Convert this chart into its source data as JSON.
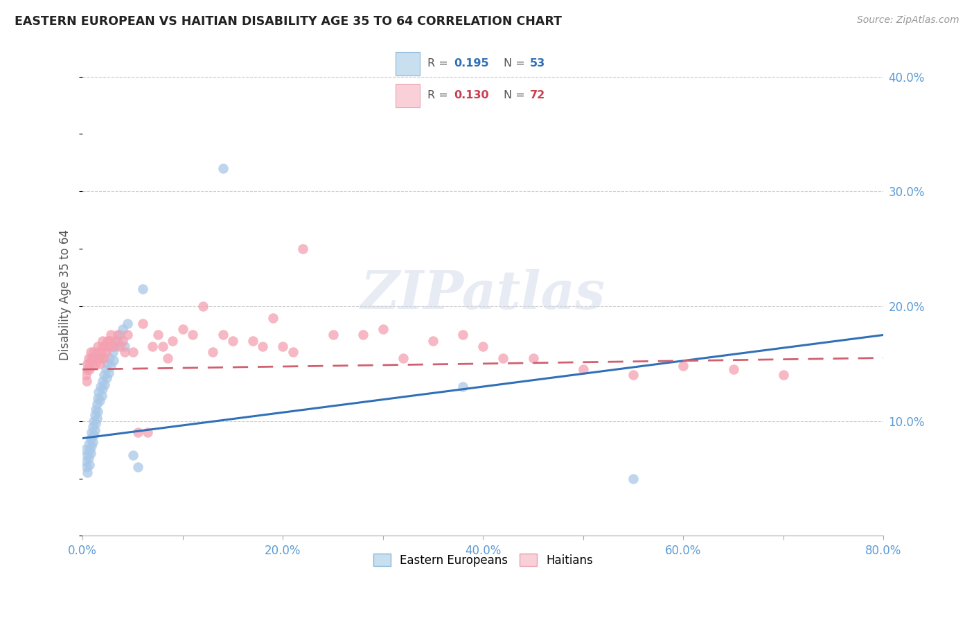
{
  "title": "EASTERN EUROPEAN VS HAITIAN DISABILITY AGE 35 TO 64 CORRELATION CHART",
  "source": "Source: ZipAtlas.com",
  "ylabel": "Disability Age 35 to 64",
  "xlim": [
    0.0,
    0.8
  ],
  "ylim": [
    0.0,
    0.42
  ],
  "xtick_positions": [
    0.0,
    0.1,
    0.2,
    0.3,
    0.4,
    0.5,
    0.6,
    0.7,
    0.8
  ],
  "xticklabels": [
    "0.0%",
    "",
    "20.0%",
    "",
    "40.0%",
    "",
    "60.0%",
    "",
    "80.0%"
  ],
  "ytick_positions": [
    0.1,
    0.2,
    0.3,
    0.4
  ],
  "ytick_labels": [
    "10.0%",
    "20.0%",
    "30.0%",
    "40.0%"
  ],
  "blue_scatter_color": "#a8c8e8",
  "pink_scatter_color": "#f4a0b0",
  "blue_line_color": "#3070b8",
  "pink_line_color": "#d06070",
  "watermark": "ZIPatlas",
  "ee_x": [
    0.002,
    0.003,
    0.004,
    0.005,
    0.005,
    0.006,
    0.006,
    0.007,
    0.007,
    0.008,
    0.008,
    0.009,
    0.009,
    0.01,
    0.01,
    0.011,
    0.011,
    0.012,
    0.012,
    0.013,
    0.013,
    0.014,
    0.014,
    0.015,
    0.015,
    0.016,
    0.017,
    0.018,
    0.019,
    0.02,
    0.02,
    0.021,
    0.022,
    0.023,
    0.024,
    0.025,
    0.026,
    0.027,
    0.028,
    0.03,
    0.031,
    0.033,
    0.035,
    0.037,
    0.04,
    0.042,
    0.045,
    0.05,
    0.055,
    0.06,
    0.14,
    0.38,
    0.55
  ],
  "ee_y": [
    0.075,
    0.065,
    0.06,
    0.055,
    0.07,
    0.08,
    0.068,
    0.075,
    0.062,
    0.085,
    0.072,
    0.09,
    0.078,
    0.095,
    0.082,
    0.1,
    0.088,
    0.105,
    0.092,
    0.11,
    0.098,
    0.115,
    0.102,
    0.12,
    0.108,
    0.125,
    0.118,
    0.13,
    0.122,
    0.135,
    0.128,
    0.14,
    0.132,
    0.145,
    0.138,
    0.15,
    0.142,
    0.155,
    0.148,
    0.16,
    0.153,
    0.165,
    0.17,
    0.175,
    0.18,
    0.165,
    0.185,
    0.07,
    0.06,
    0.215,
    0.32,
    0.13,
    0.05
  ],
  "ha_x": [
    0.003,
    0.004,
    0.005,
    0.005,
    0.006,
    0.007,
    0.007,
    0.008,
    0.009,
    0.01,
    0.01,
    0.011,
    0.012,
    0.013,
    0.014,
    0.015,
    0.015,
    0.016,
    0.017,
    0.018,
    0.019,
    0.02,
    0.02,
    0.021,
    0.022,
    0.023,
    0.025,
    0.026,
    0.027,
    0.028,
    0.03,
    0.032,
    0.035,
    0.037,
    0.04,
    0.042,
    0.045,
    0.05,
    0.055,
    0.06,
    0.065,
    0.07,
    0.075,
    0.08,
    0.085,
    0.09,
    0.1,
    0.11,
    0.12,
    0.13,
    0.14,
    0.15,
    0.17,
    0.18,
    0.19,
    0.2,
    0.21,
    0.22,
    0.25,
    0.28,
    0.3,
    0.32,
    0.35,
    0.38,
    0.4,
    0.42,
    0.45,
    0.5,
    0.55,
    0.6,
    0.65,
    0.7
  ],
  "ha_y": [
    0.14,
    0.135,
    0.15,
    0.145,
    0.155,
    0.15,
    0.145,
    0.16,
    0.155,
    0.15,
    0.155,
    0.16,
    0.155,
    0.15,
    0.155,
    0.16,
    0.165,
    0.155,
    0.15,
    0.155,
    0.16,
    0.165,
    0.17,
    0.155,
    0.165,
    0.16,
    0.17,
    0.165,
    0.17,
    0.175,
    0.165,
    0.17,
    0.175,
    0.165,
    0.17,
    0.16,
    0.175,
    0.16,
    0.09,
    0.185,
    0.09,
    0.165,
    0.175,
    0.165,
    0.155,
    0.17,
    0.18,
    0.175,
    0.2,
    0.16,
    0.175,
    0.17,
    0.17,
    0.165,
    0.19,
    0.165,
    0.16,
    0.25,
    0.175,
    0.175,
    0.18,
    0.155,
    0.17,
    0.175,
    0.165,
    0.155,
    0.155,
    0.145,
    0.14,
    0.148,
    0.145,
    0.14
  ]
}
